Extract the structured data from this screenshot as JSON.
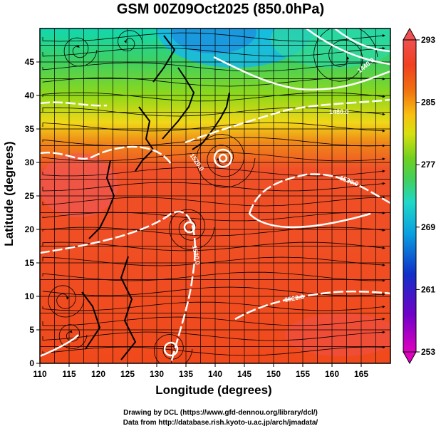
{
  "title": "GSM 00Z09Oct2025 (850.0hPa)",
  "axes": {
    "xlabel": "Longitude (degrees)",
    "ylabel": "Latitude  (degrees)",
    "xticks": [
      "110",
      "115",
      "120",
      "125",
      "130",
      "135",
      "140",
      "145",
      "150",
      "155",
      "160",
      "165"
    ],
    "yticks": [
      "0",
      "5",
      "10",
      "15",
      "20",
      "25",
      "30",
      "35",
      "40",
      "45"
    ],
    "xlim": [
      110,
      170
    ],
    "ylim": [
      0,
      50
    ]
  },
  "colorbar": {
    "ticks": [
      "253",
      "261",
      "269",
      "277",
      "285",
      "293"
    ],
    "range": [
      253,
      293
    ],
    "colors": [
      "#e000c0",
      "#6a00c8",
      "#1020c8",
      "#0a80e0",
      "#10d0e0",
      "#30d090",
      "#50d020",
      "#b8e010",
      "#f0e010",
      "#f8a010",
      "#f06010",
      "#f04020",
      "#f04848"
    ]
  },
  "contours": {
    "labels": [
      "1520.0",
      "1520.0",
      "1520.0",
      "1520.0",
      "1480.0",
      "1440.0"
    ]
  },
  "credits": {
    "line1": "Drawing by DCL (https://www.gfd-dennou.org/library/dcl/)",
    "line2": "Data from http://database.rish.kyoto-u.ac.jp/arch/jmadata/"
  }
}
